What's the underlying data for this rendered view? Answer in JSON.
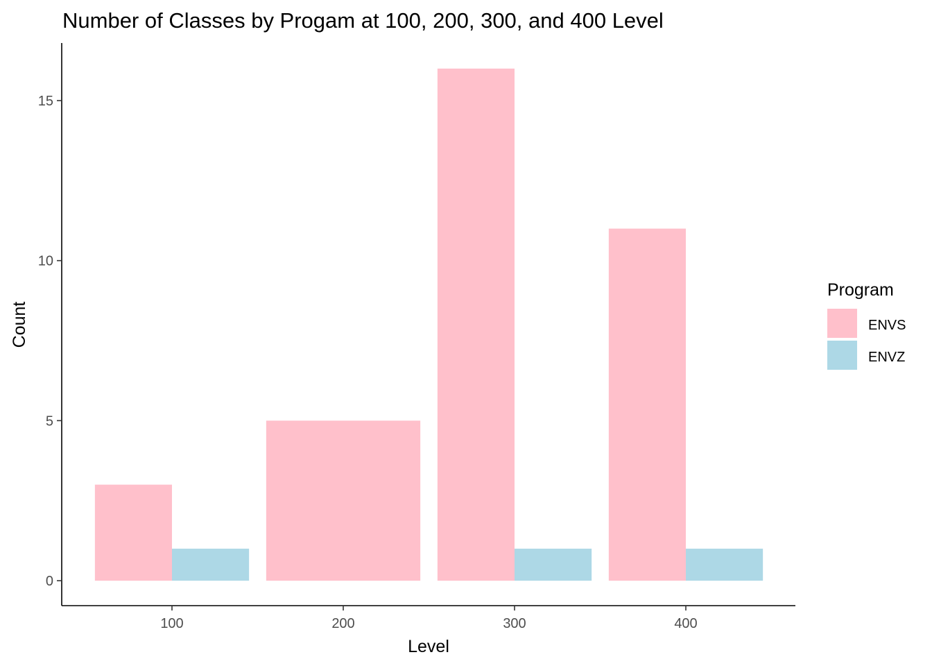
{
  "chart_data": {
    "type": "bar",
    "title": "Number of Classes by Progam at 100, 200, 300, and 400 Level",
    "xlabel": "Level",
    "ylabel": "Count",
    "categories": [
      "100",
      "200",
      "300",
      "400"
    ],
    "series": [
      {
        "name": "ENVS",
        "values": [
          3,
          5,
          16,
          11
        ],
        "color": "#FFC0CB"
      },
      {
        "name": "ENVZ",
        "values": [
          1,
          0,
          1,
          1
        ],
        "color": "#ADD8E6"
      }
    ],
    "dodge": "preserve-total",
    "ylim": [
      0,
      16
    ],
    "yticks": [
      0,
      5,
      10,
      15
    ],
    "grid": false,
    "legend": {
      "title": "Program",
      "position": "right"
    }
  }
}
